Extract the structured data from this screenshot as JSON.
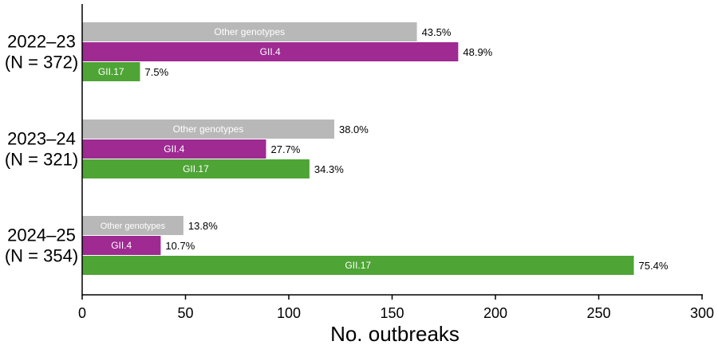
{
  "chart_data": {
    "type": "bar",
    "orientation": "horizontal",
    "xlabel": "No. outbreaks",
    "xlim": [
      0,
      300
    ],
    "xticks": [
      0,
      50,
      100,
      150,
      200,
      250,
      300
    ],
    "grid": false,
    "legend": "none (series labels inside bars)",
    "groups": [
      {
        "label": "2022–23",
        "sublabel": "(N = 372)"
      },
      {
        "label": "2023–24",
        "sublabel": "(N = 321)"
      },
      {
        "label": "2024–25",
        "sublabel": "(N = 354)"
      }
    ],
    "series": [
      {
        "name": "Other genotypes",
        "color": "#b8b8b8",
        "values": [
          162,
          122,
          49
        ],
        "percent_labels": [
          "43.5%",
          "38.0%",
          "13.8%"
        ]
      },
      {
        "name": "GII.4",
        "color": "#9e2a92",
        "values": [
          182,
          89,
          38
        ],
        "percent_labels": [
          "48.9%",
          "27.7%",
          "10.7%"
        ]
      },
      {
        "name": "GII.17",
        "color": "#4ea435",
        "values": [
          28,
          110,
          267
        ],
        "percent_labels": [
          "7.5%",
          "34.3%",
          "75.4%"
        ]
      }
    ]
  }
}
